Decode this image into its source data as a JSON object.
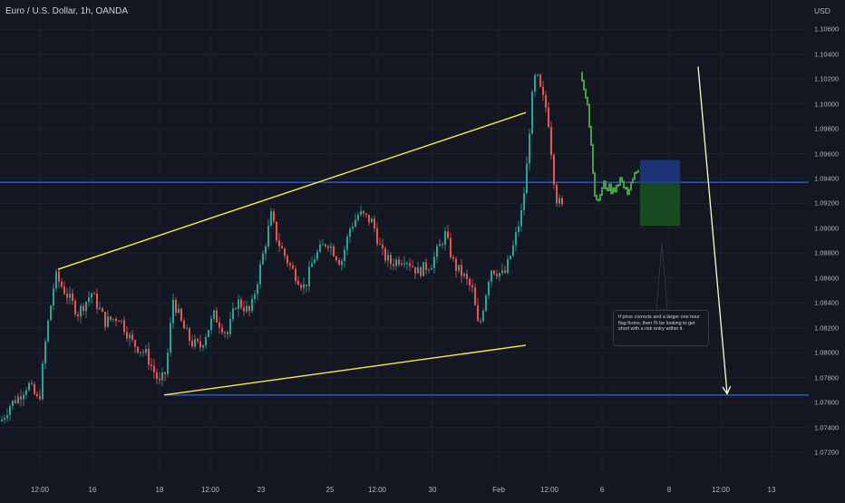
{
  "header": {
    "title": "Euro / U.S. Dollar, 1h, OANDA",
    "currency": "USD"
  },
  "annotation": {
    "text": "If price corrects and a larger one hour flag forms, then I'll be looking to get short with a risk entry within it."
  },
  "colors": {
    "background": "#131722",
    "up": "#26a69a",
    "down": "#ef5350",
    "projection": "#43a047",
    "trendline": "#ffeb3b",
    "level": "#2962ff",
    "risk": "#1e3a8a",
    "reward": "#1b5e20"
  },
  "chart_data": {
    "type": "candlestick",
    "symbol": "EURUSD",
    "interval": "1h",
    "x_tick_labels": [
      "12:00",
      "16",
      "18",
      "12:00",
      "23",
      "25",
      "12:00",
      "30",
      "Feb",
      "12:00",
      "6",
      "8",
      "12:00",
      "13"
    ],
    "y_tick_labels": [
      "1.10600",
      "1.10400",
      "1.10200",
      "1.10000",
      "1.09800",
      "1.09600",
      "1.09400",
      "1.09200",
      "1.09000",
      "1.08800",
      "1.08600",
      "1.08400",
      "1.08200",
      "1.08000",
      "1.07800",
      "1.07600",
      "1.07400",
      "1.07200"
    ],
    "ylim": [
      1.0712,
      1.1066
    ],
    "price_anchors": [
      [
        0,
        1.0745
      ],
      [
        10,
        1.0758
      ],
      [
        20,
        1.0765
      ],
      [
        30,
        1.0775
      ],
      [
        42,
        1.076
      ],
      [
        50,
        1.0815
      ],
      [
        60,
        1.0862
      ],
      [
        70,
        1.085
      ],
      [
        85,
        1.0832
      ],
      [
        100,
        1.0848
      ],
      [
        115,
        1.0825
      ],
      [
        130,
        1.0829
      ],
      [
        145,
        1.0808
      ],
      [
        160,
        1.0799
      ],
      [
        175,
        1.0775
      ],
      [
        182,
        1.0785
      ],
      [
        190,
        1.0843
      ],
      [
        200,
        1.0822
      ],
      [
        210,
        1.0808
      ],
      [
        220,
        1.0805
      ],
      [
        235,
        1.083
      ],
      [
        250,
        1.0815
      ],
      [
        260,
        1.0842
      ],
      [
        275,
        1.0832
      ],
      [
        290,
        1.0882
      ],
      [
        298,
        1.091
      ],
      [
        305,
        1.089
      ],
      [
        320,
        1.0868
      ],
      [
        335,
        1.0852
      ],
      [
        345,
        1.0876
      ],
      [
        360,
        1.089
      ],
      [
        375,
        1.0872
      ],
      [
        385,
        1.09
      ],
      [
        395,
        1.0912
      ],
      [
        410,
        1.0905
      ],
      [
        420,
        1.088
      ],
      [
        430,
        1.0872
      ],
      [
        445,
        1.0877
      ],
      [
        460,
        1.0865
      ],
      [
        475,
        1.0872
      ],
      [
        490,
        1.0895
      ],
      [
        500,
        1.087
      ],
      [
        510,
        1.0862
      ],
      [
        520,
        1.085
      ],
      [
        527,
        1.0818
      ],
      [
        540,
        1.0868
      ],
      [
        555,
        1.0862
      ],
      [
        565,
        1.0885
      ],
      [
        575,
        1.0915
      ],
      [
        580,
        1.095
      ],
      [
        585,
        1.1
      ],
      [
        590,
        1.1025
      ],
      [
        596,
        1.1008
      ],
      [
        603,
        1.0993
      ],
      [
        608,
        1.0955
      ],
      [
        612,
        1.0925
      ],
      [
        618,
        1.0918
      ],
      [
        622,
        1.0912
      ]
    ],
    "projection_anchors": [
      [
        640,
        1.1025
      ],
      [
        647,
        1.1
      ],
      [
        652,
        1.0958
      ],
      [
        656,
        1.0918
      ],
      [
        665,
        1.0935
      ],
      [
        675,
        1.093
      ],
      [
        683,
        1.094
      ],
      [
        690,
        1.0928
      ],
      [
        698,
        1.0942
      ],
      [
        705,
        1.0945
      ]
    ],
    "trendlines": [
      {
        "name": "upper-trendline",
        "x1": 64,
        "y1": 1.0867,
        "x2": 580,
        "y2": 1.0993
      },
      {
        "name": "lower-trendline",
        "x1": 181,
        "y1": 1.0766,
        "x2": 580,
        "y2": 1.0806
      }
    ],
    "levels": [
      1.0937,
      1.0766
    ],
    "position": {
      "top": 1.0955,
      "entry": 1.0936,
      "bottom": 1.0902
    },
    "forecast_arrow": {
      "x1": 770,
      "y1": 1.103,
      "x2": 802,
      "y2": 1.0767
    }
  }
}
